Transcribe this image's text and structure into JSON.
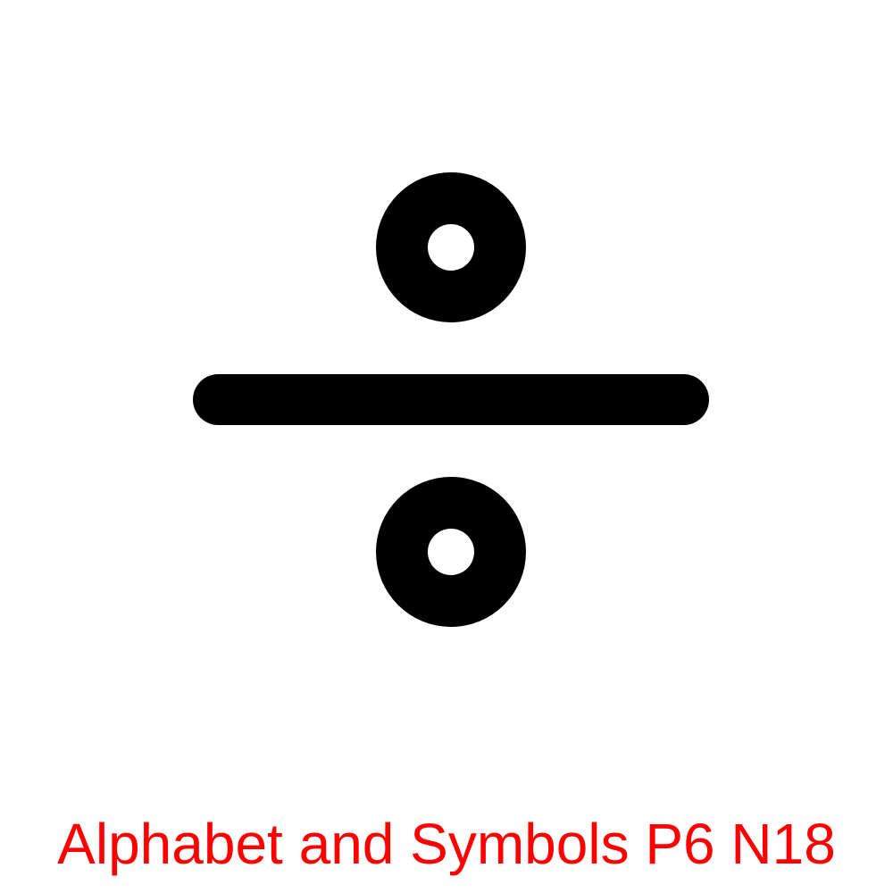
{
  "symbol": {
    "name": "division-sign",
    "color": "#000000",
    "hole_color": "#ffffff"
  },
  "caption": {
    "text": "Alphabet and Symbols P6 N18",
    "color": "#ff0000"
  }
}
